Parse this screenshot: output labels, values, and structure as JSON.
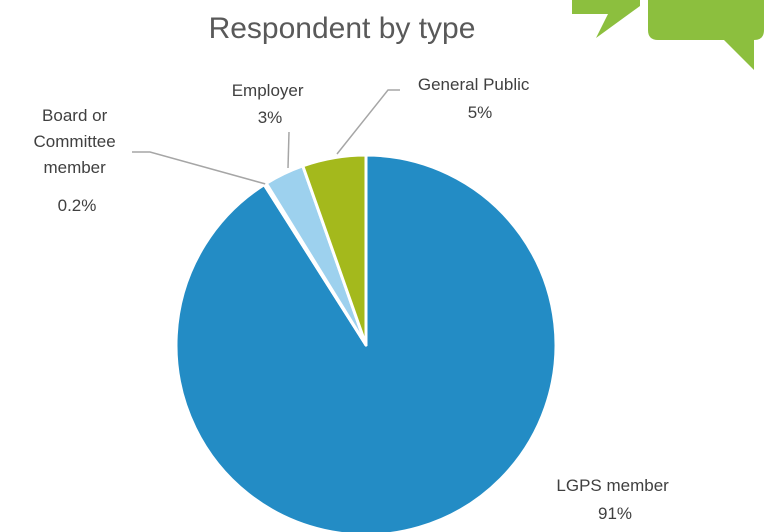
{
  "chart_data": {
    "type": "pie",
    "title": "Respondent by type",
    "start": "12 o'clock",
    "direction": "clockwise",
    "slices": [
      {
        "label": "LGPS member",
        "value": 91.0,
        "value_label": "91%",
        "color": "#238cc5"
      },
      {
        "label": "Board or Committee member",
        "value": 0.2,
        "value_label": "0.2%",
        "color": "#f2f2f2"
      },
      {
        "label": "Employer",
        "value": 3.4,
        "value_label": "3%",
        "color": "#9dd1ee"
      },
      {
        "label": "General Public",
        "value": 5.4,
        "value_label": "5%",
        "color": "#a4b91c"
      }
    ],
    "legend": "none"
  },
  "decor": {
    "speech_bubble_color": "#8cbf3e"
  }
}
